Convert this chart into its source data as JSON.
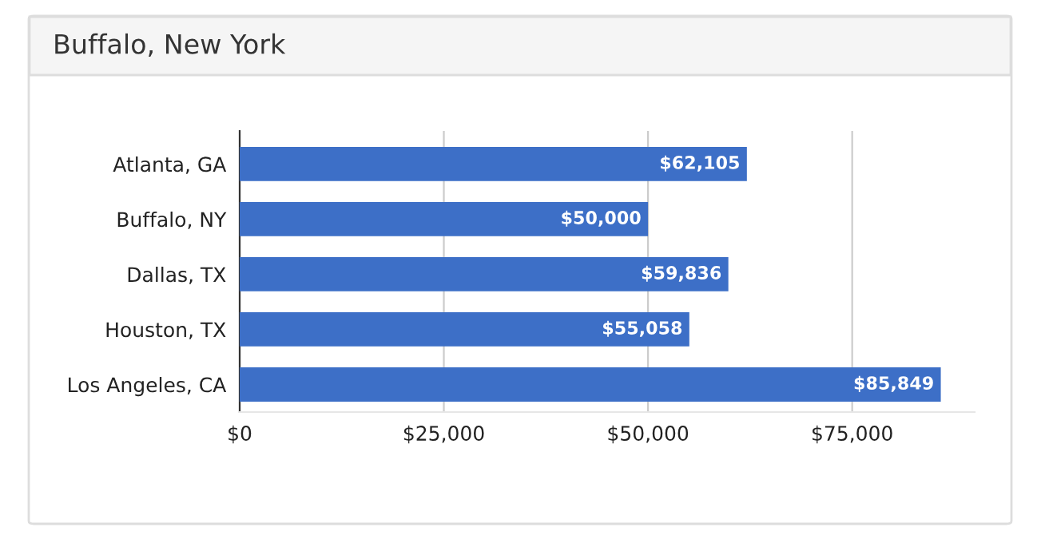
{
  "chart_data": {
    "type": "bar",
    "orientation": "horizontal",
    "title": "Buffalo, New York",
    "categories": [
      "Atlanta, GA",
      "Buffalo, NY",
      "Dallas, TX",
      "Houston, TX",
      "Los Angeles, CA"
    ],
    "values": [
      62105,
      50000,
      59836,
      55058,
      85849
    ],
    "value_labels": [
      "$62,105",
      "$50,000",
      "$59,836",
      "$55,058",
      "$85,849"
    ],
    "color": "#3d6fc7",
    "xlim": [
      0,
      90000
    ],
    "xticks": [
      {
        "value": 0,
        "label": "$0"
      },
      {
        "value": 25000,
        "label": "$25,000"
      },
      {
        "value": 50000,
        "label": "$50,000"
      },
      {
        "value": 75000,
        "label": "$75,000"
      }
    ],
    "grid": "x",
    "legend": false
  }
}
